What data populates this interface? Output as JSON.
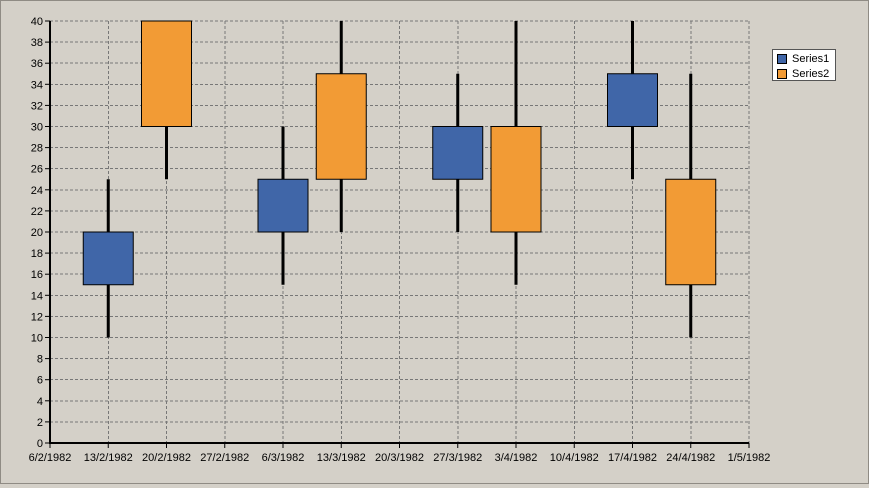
{
  "chart_data": {
    "type": "candlestick",
    "title": "",
    "xlabel": "",
    "ylabel": "",
    "ylim": [
      0,
      40
    ],
    "y_ticks": [
      0,
      2,
      4,
      6,
      8,
      10,
      12,
      14,
      16,
      18,
      20,
      22,
      24,
      26,
      28,
      30,
      32,
      34,
      36,
      38,
      40
    ],
    "x_ticks": [
      "6/2/1982",
      "13/2/1982",
      "20/2/1982",
      "27/2/1982",
      "6/3/1982",
      "13/3/1982",
      "20/3/1982",
      "27/3/1982",
      "3/4/1982",
      "10/4/1982",
      "17/4/1982",
      "24/4/1982",
      "1/5/1982"
    ],
    "grid": true,
    "legend_position": "top-right",
    "series": [
      {
        "name": "Series1",
        "color": "#4066a8",
        "points": [
          {
            "date": "13/2/1982",
            "low": 10,
            "open": 15,
            "close": 20,
            "high": 25
          },
          {
            "date": "6/3/1982",
            "low": 15,
            "open": 20,
            "close": 25,
            "high": 30
          },
          {
            "date": "27/3/1982",
            "low": 20,
            "open": 25,
            "close": 30,
            "high": 35
          },
          {
            "date": "17/4/1982",
            "low": 25,
            "open": 30,
            "close": 35,
            "high": 40
          }
        ]
      },
      {
        "name": "Series2",
        "color": "#f29b35",
        "points": [
          {
            "date": "20/2/1982",
            "low": 25,
            "open": 30,
            "close": 40,
            "high": 40
          },
          {
            "date": "13/3/1982",
            "low": 20,
            "open": 25,
            "close": 35,
            "high": 40
          },
          {
            "date": "3/4/1982",
            "low": 15,
            "open": 20,
            "close": 30,
            "high": 40
          },
          {
            "date": "24/4/1982",
            "low": 10,
            "open": 15,
            "close": 25,
            "high": 35
          }
        ]
      }
    ]
  }
}
